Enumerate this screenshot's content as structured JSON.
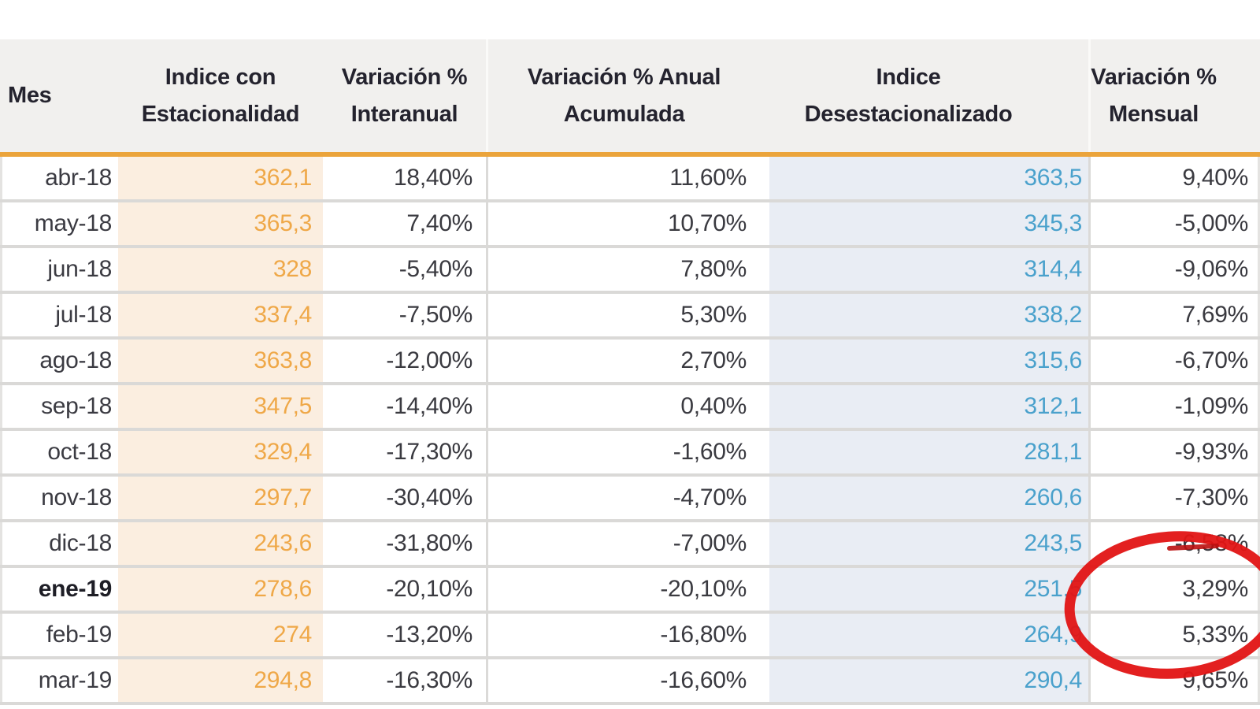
{
  "table": {
    "columns": [
      {
        "id": "mes",
        "label": "Mes"
      },
      {
        "id": "indice_con_estacionalidad",
        "label": "Indice con\nEstacionalidad"
      },
      {
        "id": "variacion_interanual",
        "label": "Variación %\nInteranual"
      },
      {
        "id": "variacion_anual_acumulada",
        "label": "Variación % Anual\nAcumulada"
      },
      {
        "id": "indice_desestacionalizado",
        "label": "Indice\nDesestacionalizado"
      },
      {
        "id": "variacion_mensual",
        "label": "Variación %\nMensual"
      }
    ],
    "rows": [
      {
        "bold": false,
        "cells": [
          "abr-18",
          "362,1",
          "18,40%",
          "11,60%",
          "363,5",
          "9,40%"
        ]
      },
      {
        "bold": false,
        "cells": [
          "may-18",
          "365,3",
          "7,40%",
          "10,70%",
          "345,3",
          "-5,00%"
        ]
      },
      {
        "bold": false,
        "cells": [
          "jun-18",
          "328",
          "-5,40%",
          "7,80%",
          "314,4",
          "-9,06%"
        ]
      },
      {
        "bold": false,
        "cells": [
          "jul-18",
          "337,4",
          "-7,50%",
          "5,30%",
          "338,2",
          "7,69%"
        ]
      },
      {
        "bold": false,
        "cells": [
          "ago-18",
          "363,8",
          "-12,00%",
          "2,70%",
          "315,6",
          "-6,70%"
        ]
      },
      {
        "bold": false,
        "cells": [
          "sep-18",
          "347,5",
          "-14,40%",
          "0,40%",
          "312,1",
          "-1,09%"
        ]
      },
      {
        "bold": false,
        "cells": [
          "oct-18",
          "329,4",
          "-17,30%",
          "-1,60%",
          "281,1",
          "-9,93%"
        ]
      },
      {
        "bold": false,
        "cells": [
          "nov-18",
          "297,7",
          "-30,40%",
          "-4,70%",
          "260,6",
          "-7,30%"
        ]
      },
      {
        "bold": false,
        "cells": [
          "dic-18",
          "243,6",
          "-31,80%",
          "-7,00%",
          "243,5",
          "-6,58%"
        ]
      },
      {
        "bold": true,
        "cells": [
          "ene-19",
          "278,6",
          "-20,10%",
          "-20,10%",
          "251,5",
          "3,29%"
        ]
      },
      {
        "bold": false,
        "cells": [
          "feb-19",
          "274",
          "-13,20%",
          "-16,80%",
          "264,9",
          "5,33%"
        ]
      },
      {
        "bold": false,
        "cells": [
          "mar-19",
          "294,8",
          "-16,30%",
          "-16,60%",
          "290,4",
          "9,65%"
        ]
      }
    ]
  },
  "annotation": {
    "shape": "hand-drawn-ellipse",
    "color": "#e21414",
    "column": "Variación % Mensual",
    "circled_rows": [
      "ene-19",
      "feb-19",
      "mar-19"
    ],
    "circled_values": [
      "3,29%",
      "5,33%",
      "9,65%"
    ]
  },
  "colors": {
    "header_bg": "#f1f0ee",
    "header_text": "#24232e",
    "header_rule_orange": "#eba43b",
    "seasonal_col_bg": "#fbeee0",
    "seasonal_col_text": "#efa848",
    "deseasonalized_col_bg": "#e9edf4",
    "deseasonalized_col_text": "#4aa1cc",
    "body_text": "#3a3a40",
    "row_separator": "#dad9d7",
    "annotation_red": "#e21414"
  },
  "chart_data": {
    "type": "table",
    "title": "",
    "columns": [
      "Mes",
      "Indice con Estacionalidad",
      "Variación % Interanual",
      "Variación % Anual Acumulada",
      "Indice Desestacionalizado",
      "Variación % Mensual"
    ],
    "categories": [
      "abr-18",
      "may-18",
      "jun-18",
      "jul-18",
      "ago-18",
      "sep-18",
      "oct-18",
      "nov-18",
      "dic-18",
      "ene-19",
      "feb-19",
      "mar-19"
    ],
    "series": [
      {
        "name": "Indice con Estacionalidad",
        "values": [
          362.1,
          365.3,
          328,
          337.4,
          363.8,
          347.5,
          329.4,
          297.7,
          243.6,
          278.6,
          274,
          294.8
        ]
      },
      {
        "name": "Variación % Interanual",
        "values": [
          18.4,
          7.4,
          -5.4,
          -7.5,
          -12.0,
          -14.4,
          -17.3,
          -30.4,
          -31.8,
          -20.1,
          -13.2,
          -16.3
        ]
      },
      {
        "name": "Variación % Anual Acumulada",
        "values": [
          11.6,
          10.7,
          7.8,
          5.3,
          2.7,
          0.4,
          -1.6,
          -4.7,
          -7.0,
          -20.1,
          -16.8,
          -16.6
        ]
      },
      {
        "name": "Indice Desestacionalizado",
        "values": [
          363.5,
          345.3,
          314.4,
          338.2,
          315.6,
          312.1,
          281.1,
          260.6,
          243.5,
          251.5,
          264.9,
          290.4
        ]
      },
      {
        "name": "Variación % Mensual",
        "values": [
          9.4,
          -5.0,
          -9.06,
          7.69,
          -6.7,
          -1.09,
          -9.93,
          -7.3,
          -6.58,
          3.29,
          5.33,
          9.65
        ]
      }
    ],
    "annotations": [
      "red hand-drawn circle around Variación % Mensual values of ene-19, feb-19, mar-19"
    ]
  }
}
